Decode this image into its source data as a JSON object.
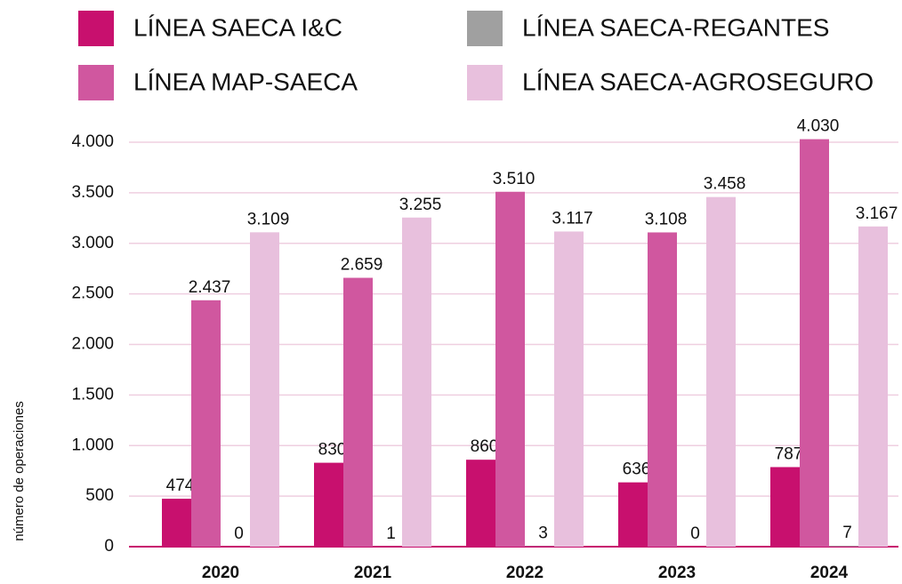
{
  "chart_data": {
    "type": "bar",
    "y_axis_label": "número de operaciones",
    "categories": [
      "2020",
      "2021",
      "2022",
      "2023",
      "2024"
    ],
    "series": [
      {
        "name": "LÍNEA SAECA I&C",
        "color": "#c8106e",
        "values": [
          474,
          830,
          860,
          636,
          787
        ],
        "value_labels": [
          "474",
          "830",
          "860",
          "636",
          "787"
        ]
      },
      {
        "name": "LÍNEA MAP-SAECA",
        "color": "#d0579f",
        "values": [
          2437,
          2659,
          3510,
          3108,
          4030
        ],
        "value_labels": [
          "2.437",
          "2.659",
          "3.510",
          "3.108",
          "4.030"
        ]
      },
      {
        "name": "LÍNEA SAECA-REGANTES",
        "color": "#a0a0a0",
        "values": [
          0,
          1,
          3,
          0,
          7
        ],
        "value_labels": [
          "0",
          "1",
          "3",
          "0",
          "7"
        ]
      },
      {
        "name": "LÍNEA SAECA-AGROSEGURO",
        "color": "#e8c0dd",
        "values": [
          3109,
          3255,
          3117,
          3458,
          3167
        ],
        "value_labels": [
          "3.109",
          "3.255",
          "3.117",
          "3.458",
          "3.167"
        ]
      }
    ],
    "ylim": [
      0,
      4000
    ],
    "yticks": [
      0,
      500,
      {
        "value": 1000,
        "label": "1.000"
      },
      {
        "value": 1500,
        "label": "1.500"
      },
      {
        "value": 2000,
        "label": "2.000"
      },
      {
        "value": 2500,
        "label": "2.500"
      },
      {
        "value": 3000,
        "label": "3.000"
      },
      {
        "value": 3500,
        "label": "3.500"
      },
      {
        "value": 4000,
        "label": "4.000"
      }
    ],
    "grid": true,
    "legend": "top"
  }
}
